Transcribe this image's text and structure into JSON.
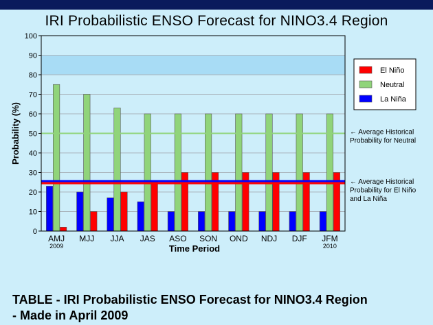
{
  "chart_data": {
    "type": "bar",
    "title": "IRI Probabilistic ENSO Forecast for NINO3.4 Region",
    "xlabel": "Time Period",
    "ylabel": "Probability (%)",
    "ylim": [
      0,
      100
    ],
    "yticks": [
      0,
      10,
      20,
      30,
      40,
      50,
      60,
      70,
      80,
      90,
      100
    ],
    "grid": true,
    "legend_position": "top-right",
    "categories": [
      "AMJ",
      "MJJ",
      "JJA",
      "JAS",
      "ASO",
      "SON",
      "OND",
      "NDJ",
      "DJF",
      "JFM"
    ],
    "category_years": [
      "2009",
      "",
      "",
      "",
      "",
      "",
      "",
      "",
      "",
      "2010"
    ],
    "series": [
      {
        "name": "La Niña",
        "color": "#0000ff",
        "values": [
          23,
          20,
          17,
          15,
          10,
          10,
          10,
          10,
          10,
          10
        ]
      },
      {
        "name": "Neutral",
        "color": "#90d47a",
        "values": [
          75,
          70,
          63,
          60,
          60,
          60,
          60,
          60,
          60,
          60
        ]
      },
      {
        "name": "El Niño",
        "color": "#ff0000",
        "values": [
          2,
          10,
          20,
          25,
          30,
          30,
          30,
          30,
          30,
          30
        ]
      }
    ],
    "legend_order": [
      "El Niño",
      "Neutral",
      "La Niña"
    ],
    "highlight_band": {
      "from": 80,
      "to": 90,
      "color": "#a8dcf5"
    },
    "reference_lines": [
      {
        "value": 50,
        "color": "#90d47a",
        "label_lines": [
          "← Average Historical",
          "Probability for Neutral"
        ]
      },
      {
        "value": 25,
        "color": "#0000ff",
        "color2": "#ff0000",
        "label_lines": [
          "← Average Historical",
          "Probability for El Niño",
          "and La Niña"
        ]
      }
    ]
  },
  "caption": {
    "line1": "TABLE - IRI Probabilistic ENSO Forecast for NINO3.4 Region",
    "line2": "- Made in April 2009"
  }
}
